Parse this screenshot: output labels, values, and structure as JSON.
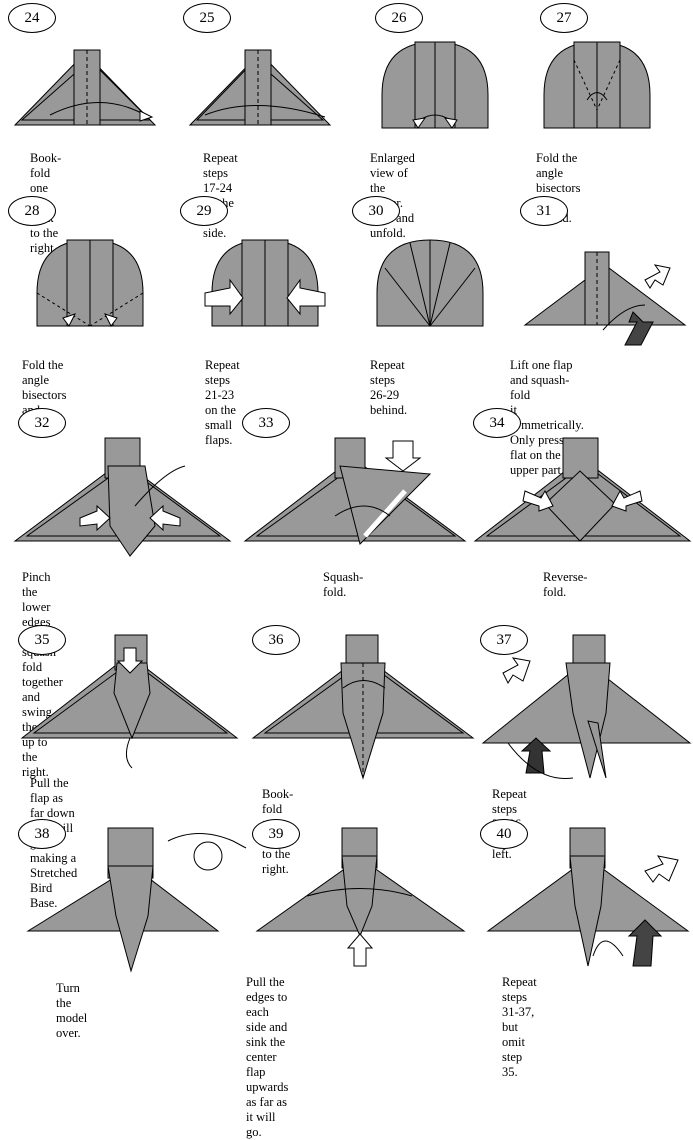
{
  "steps": [
    {
      "number": "24",
      "caption": "Book-fold one flap\nback to the right."
    },
    {
      "number": "25",
      "caption": "Repeat steps 17-24\non the left side."
    },
    {
      "number": "26",
      "caption": "Enlarged view of the\ncenter. Fold and unfold."
    },
    {
      "number": "27",
      "caption": "Fold the angle bisectors\nand unfold."
    },
    {
      "number": "28",
      "caption": "Fold the angle bisectors\nand unfold."
    },
    {
      "number": "29",
      "caption": "Repeat steps 21-23\non the small flaps."
    },
    {
      "number": "30",
      "caption": "Repeat steps 26-29\nbehind."
    },
    {
      "number": "31",
      "caption": "Lift one flap and squash-fold\nit symmetrically. Only press\nflat on the upper part."
    },
    {
      "number": "32",
      "caption": "Pinch the lower edges of the\nsquash fold together and swing\nthe flap up to the right."
    },
    {
      "number": "33",
      "caption": "Squash-fold."
    },
    {
      "number": "34",
      "caption": "Reverse-fold."
    },
    {
      "number": "35",
      "caption": "Pull the flap as far down as it will\ngo, making a Stretched Bird Base."
    },
    {
      "number": "36",
      "caption": "Book-fold two edges to the right."
    },
    {
      "number": "37",
      "caption": "Repeat steps 31-36 on the left."
    },
    {
      "number": "38",
      "caption": "Turn the model over."
    },
    {
      "number": "39",
      "caption": "Pull the edges to each side and sink the\ncenter flap upwards as far as it will go."
    },
    {
      "number": "40",
      "caption": "Repeat steps 31-37, but\nomit step 35."
    }
  ],
  "colors": {
    "paper": "#999999",
    "line": "#000000",
    "background": "#ffffff"
  }
}
